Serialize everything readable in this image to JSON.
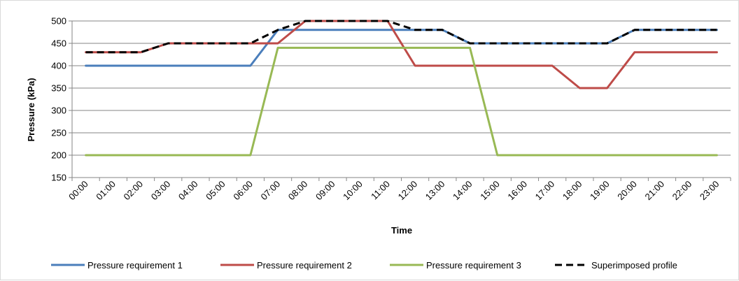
{
  "chart_data": {
    "type": "line",
    "xlabel": "Time",
    "ylabel": "Pressure (kPa)",
    "ylim": [
      150,
      500
    ],
    "yticks": [
      150,
      200,
      250,
      300,
      350,
      400,
      450,
      500
    ],
    "grid": "horizontal",
    "legend_position": "bottom",
    "categories": [
      "00:00",
      "01:00",
      "02:00",
      "03:00",
      "04:00",
      "05:00",
      "06:00",
      "07:00",
      "08:00",
      "09:00",
      "10:00",
      "11:00",
      "12:00",
      "13:00",
      "14:00",
      "15:00",
      "16:00",
      "17:00",
      "18:00",
      "19:00",
      "20:00",
      "21:00",
      "22:00",
      "23:00"
    ],
    "series": [
      {
        "name": "Pressure requirement 1",
        "color": "#4a7ebb",
        "dashed": false,
        "values": [
          400,
          400,
          400,
          400,
          400,
          400,
          400,
          480,
          480,
          480,
          480,
          480,
          480,
          480,
          450,
          450,
          450,
          450,
          450,
          450,
          480,
          480,
          480,
          480
        ]
      },
      {
        "name": "Pressure requirement 2",
        "color": "#be4b48",
        "dashed": false,
        "values": [
          430,
          430,
          430,
          450,
          450,
          450,
          450,
          450,
          500,
          500,
          500,
          500,
          400,
          400,
          400,
          400,
          400,
          400,
          350,
          350,
          430,
          430,
          430,
          430
        ]
      },
      {
        "name": "Pressure requirement 3",
        "color": "#98b954",
        "dashed": false,
        "values": [
          200,
          200,
          200,
          200,
          200,
          200,
          200,
          440,
          440,
          440,
          440,
          440,
          440,
          440,
          440,
          200,
          200,
          200,
          200,
          200,
          200,
          200,
          200,
          200
        ]
      },
      {
        "name": "Superimposed profile",
        "color": "#000000",
        "dashed": true,
        "values": [
          430,
          430,
          430,
          450,
          450,
          450,
          450,
          480,
          500,
          500,
          500,
          500,
          480,
          480,
          450,
          450,
          450,
          450,
          450,
          450,
          480,
          480,
          480,
          480
        ]
      }
    ]
  }
}
